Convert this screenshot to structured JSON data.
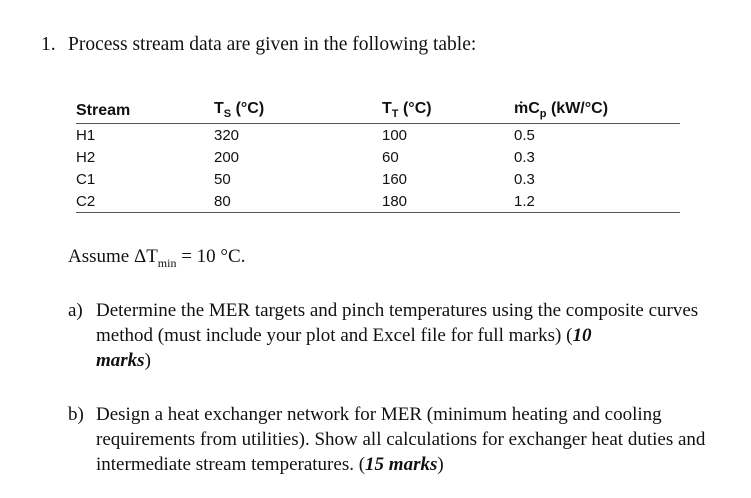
{
  "question": {
    "number": "1.",
    "intro": "Process stream data are given in the following table:"
  },
  "table": {
    "headers": {
      "stream": "Stream",
      "ts_main": "T",
      "ts_sub": "S",
      "ts_unit": " (°C)",
      "tt_main": "T",
      "tt_sub": "T",
      "tt_unit": " (°C)",
      "mcp_main": "ṁC",
      "mcp_sub": "p",
      "mcp_unit": " (kW/°C)"
    },
    "rows": [
      {
        "stream": "H1",
        "ts": "320",
        "tt": "100",
        "mcp": "0.5"
      },
      {
        "stream": "H2",
        "ts": "200",
        "tt": "60",
        "mcp": "0.3"
      },
      {
        "stream": "C1",
        "ts": "50",
        "tt": "160",
        "mcp": "0.3"
      },
      {
        "stream": "C2",
        "ts": "80",
        "tt": "180",
        "mcp": "1.2"
      }
    ]
  },
  "assumption": {
    "prefix": "Assume ΔT",
    "sub": "min",
    "suffix": " = 10 °C."
  },
  "part_a": {
    "label": "a)",
    "text": "Determine the MER targets and pinch temperatures using the composite curves method (must include your plot and Excel file for full marks) (",
    "marks_num": "10",
    "marks_word": "marks",
    "close": ")"
  },
  "part_b": {
    "label": "b)",
    "text": "Design a heat exchanger network for MER (minimum heating and cooling requirements from utilities). Show all calculations for exchanger heat duties and intermediate stream temperatures. (",
    "marks": "15 marks",
    "close": ")"
  }
}
